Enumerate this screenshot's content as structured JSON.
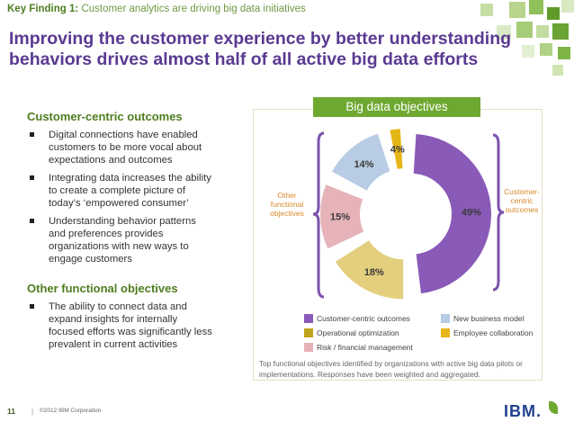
{
  "header": {
    "finding_label": "Key Finding 1:",
    "finding_text": "Customer analytics are driving big data initiatives",
    "title": "Improving the customer experience by better understanding behaviors drives almost half of all active big data efforts"
  },
  "left": {
    "section1_heading": "Customer-centric outcomes",
    "section1_bullets": [
      "Digital connections have enabled customers to be more vocal about expectations and outcomes",
      "Integrating data increases the ability to create a complete picture of today’s ‘empowered consumer’",
      "Understanding behavior patterns and preferences provides organizations with new ways to engage customers"
    ],
    "section2_heading": "Other functional objectives",
    "section2_bullets": [
      "The ability to connect data and expand insights for internally focused efforts was significantly less prevalent in current activities"
    ]
  },
  "chart_data": {
    "type": "pie",
    "title": "Big data objectives",
    "slices": [
      {
        "name": "Customer-centric outcomes",
        "value": 49,
        "label": "49%",
        "color": "#8a5ab8"
      },
      {
        "name": "Operational optimization",
        "value": 18,
        "label": "18%",
        "color": "#e3cf7e"
      },
      {
        "name": "Risk / financial management",
        "value": 15,
        "label": "15%",
        "color": "#e6b3b8"
      },
      {
        "name": "New business model",
        "value": 14,
        "label": "14%",
        "color": "#b8cde4"
      },
      {
        "name": "Employee collaboration",
        "value": 4,
        "label": "4%",
        "color": "#e5b617"
      }
    ],
    "group_labels": {
      "customer_centric": "Customer-centric outcomes",
      "other": "Other functional objectives"
    },
    "legend": [
      {
        "label": "Customer-centric outcomes",
        "color": "#8a5ab8"
      },
      {
        "label": "New business model",
        "color": "#b8cde4"
      },
      {
        "label": "Operational optimization",
        "color": "#bfa21e"
      },
      {
        "label": "Employee collaboration",
        "color": "#e5b617"
      },
      {
        "label": "Risk / financial management",
        "color": "#e6b3b8"
      }
    ],
    "footnote": "Top functional objectives identified by organizations with active big data pilots or implementations. Responses have been weighted and aggregated."
  },
  "footer": {
    "page_number": "11",
    "separator": "|",
    "copyright": "©2012 IBM Corporation",
    "logo_text": "IBM."
  },
  "colors": {
    "title_purple": "#5a3a91",
    "accent_green": "#6fa830",
    "brace_purple": "#7c52ad",
    "orange_label": "#d9892a"
  }
}
